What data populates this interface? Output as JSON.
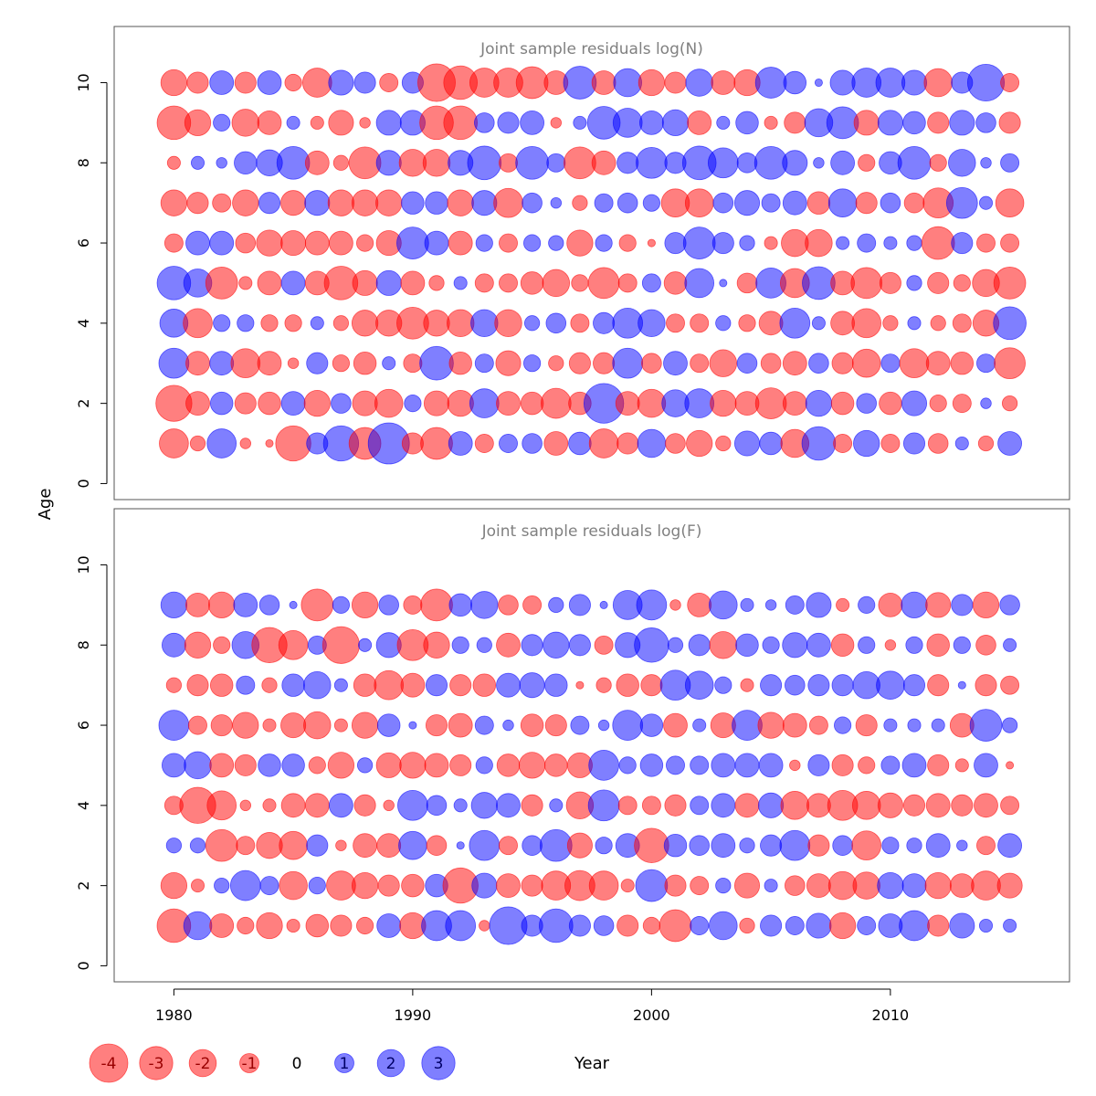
{
  "colors": {
    "negative": "#ff0000",
    "positive": "#0000ff",
    "bubble_opacity": 0.5,
    "panel_title": "#808080"
  },
  "labels": {
    "ylabel": "Age",
    "xlabel": "Year"
  },
  "chart_data": [
    {
      "type": "scatter",
      "title": "Joint sample residuals log(N)",
      "x_ticks": [
        1980,
        1990,
        2000,
        2010
      ],
      "y_ticks": [
        0,
        2,
        4,
        6,
        8,
        10
      ],
      "xlim": [
        1977.5,
        2017.5
      ],
      "ylim": [
        -0.4,
        11.4
      ],
      "years": [
        1980,
        1981,
        1982,
        1983,
        1984,
        1985,
        1986,
        1987,
        1988,
        1989,
        1990,
        1991,
        1992,
        1993,
        1994,
        1995,
        1996,
        1997,
        1998,
        1999,
        2000,
        2001,
        2002,
        2003,
        2004,
        2005,
        2006,
        2007,
        2008,
        2009,
        2010,
        2011,
        2012,
        2013,
        2014,
        2015
      ],
      "ages": [
        1,
        2,
        3,
        4,
        5,
        6,
        7,
        8,
        9,
        10
      ],
      "residuals": [
        [
          -1.5,
          -0.4,
          1.5,
          -0.2,
          -0.1,
          -2.2,
          0.8,
          2.2,
          -1.8,
          3.0,
          -0.8,
          -1.8,
          1.0,
          -0.6,
          0.6,
          0.7,
          -1.0,
          0.9,
          -1.5,
          -0.8,
          1.4,
          -0.7,
          -1.2,
          -0.4,
          1.1,
          0.9,
          -1.4,
          2.0,
          -0.6,
          1.2,
          -0.6,
          0.8,
          -0.7,
          0.3,
          -0.4,
          1.0
        ],
        [
          -2.3,
          -1.0,
          0.9,
          -0.8,
          -0.9,
          1.0,
          -1.2,
          0.7,
          -1.1,
          -1.4,
          0.5,
          -1.1,
          -1.2,
          1.5,
          -1.0,
          -0.9,
          -1.6,
          -0.9,
          2.8,
          -1.0,
          -1.4,
          1.3,
          1.5,
          -1.2,
          -1.0,
          -1.7,
          -1.0,
          1.2,
          -0.9,
          0.7,
          -0.9,
          1.1,
          -0.5,
          -0.6,
          0.2,
          -0.4
        ],
        [
          1.6,
          -1.0,
          1.0,
          -1.5,
          -1.0,
          -0.2,
          0.8,
          -0.5,
          -0.9,
          0.3,
          -0.6,
          2.0,
          -0.9,
          0.6,
          -1.1,
          0.5,
          -0.4,
          -0.8,
          -0.8,
          1.6,
          -0.7,
          1.0,
          -0.6,
          -1.3,
          0.7,
          -0.7,
          -1.0,
          0.7,
          -0.8,
          -1.4,
          0.6,
          -1.5,
          -1.0,
          -0.9,
          0.6,
          -1.7
        ],
        [
          1.4,
          -1.5,
          0.5,
          0.5,
          -0.5,
          -0.5,
          0.3,
          -0.4,
          -1.2,
          -1.2,
          -1.8,
          -1.2,
          -1.3,
          1.3,
          -1.3,
          0.4,
          0.7,
          -0.6,
          0.8,
          1.6,
          1.3,
          -0.6,
          -0.6,
          0.4,
          -0.5,
          -1.0,
          1.6,
          0.3,
          -1.0,
          -1.5,
          -0.4,
          0.3,
          -0.4,
          -0.6,
          -1.2,
          1.9
        ],
        [
          2.0,
          1.4,
          -1.8,
          -0.3,
          -1.0,
          1.0,
          -1.0,
          -2.0,
          -1.1,
          1.1,
          -1.0,
          -0.4,
          0.3,
          -0.6,
          -0.6,
          -0.9,
          -1.3,
          -0.5,
          -1.7,
          -0.6,
          0.6,
          -0.9,
          1.5,
          0.1,
          -0.7,
          1.6,
          -1.5,
          1.9,
          -1.0,
          -1.7,
          -0.8,
          0.4,
          -0.8,
          -0.5,
          -1.3,
          -1.8
        ],
        [
          -0.6,
          1.0,
          1.0,
          -0.7,
          -1.2,
          -1.1,
          -1.0,
          -1.0,
          -0.5,
          -1.1,
          1.8,
          1.0,
          -1.0,
          0.5,
          -0.6,
          0.5,
          0.4,
          -1.2,
          0.5,
          -0.5,
          -0.1,
          0.8,
          1.8,
          0.8,
          0.4,
          -0.3,
          -1.3,
          -1.3,
          0.3,
          0.6,
          0.3,
          0.4,
          -1.9,
          0.8,
          -0.6,
          -0.6
        ],
        [
          -1.2,
          -0.8,
          -0.6,
          -1.2,
          0.8,
          -1.1,
          1.1,
          -1.2,
          -1.2,
          -1.2,
          0.9,
          0.9,
          -1.2,
          1.1,
          -1.5,
          0.7,
          0.2,
          -0.4,
          0.6,
          0.7,
          0.5,
          -1.4,
          -1.4,
          0.7,
          1.1,
          0.6,
          1.0,
          -0.9,
          1.4,
          -0.8,
          0.7,
          -0.7,
          -1.6,
          1.7,
          0.3,
          -1.4
        ],
        [
          -0.3,
          0.3,
          0.2,
          0.9,
          1.2,
          1.9,
          -1.0,
          -0.4,
          -1.8,
          1.1,
          -1.3,
          -1.3,
          1.1,
          2.0,
          -0.6,
          1.9,
          0.6,
          -1.8,
          -1.0,
          0.8,
          1.7,
          0.8,
          2.0,
          1.6,
          0.7,
          1.9,
          1.1,
          0.2,
          1.0,
          -0.5,
          0.9,
          1.9,
          -0.5,
          1.3,
          0.2,
          0.6
        ],
        [
          -2.0,
          -1.2,
          0.5,
          -1.3,
          -1.0,
          0.3,
          -0.3,
          -1.1,
          -0.2,
          1.1,
          1.1,
          -2.0,
          -2.0,
          0.7,
          0.8,
          1.0,
          -0.2,
          0.3,
          1.9,
          1.5,
          1.0,
          1.2,
          -1.0,
          0.3,
          0.9,
          -0.3,
          -0.8,
          1.4,
          1.8,
          -1.1,
          1.1,
          0.9,
          -0.8,
          1.1,
          0.7,
          -0.8
        ],
        [
          -1.2,
          -0.8,
          1.0,
          -0.8,
          1.0,
          -0.5,
          -1.5,
          1.1,
          0.8,
          -0.6,
          0.8,
          -2.5,
          -2.0,
          -1.5,
          -1.5,
          -1.8,
          -1.0,
          1.9,
          -1.0,
          1.4,
          -1.2,
          -0.8,
          1.3,
          -1.0,
          -1.2,
          1.7,
          0.9,
          0.1,
          1.1,
          1.5,
          1.5,
          1.1,
          -1.4,
          0.8,
          2.4,
          -0.6
        ]
      ]
    },
    {
      "type": "scatter",
      "title": "Joint sample residuals log(F)",
      "x_ticks": [
        1980,
        1990,
        2000,
        2010
      ],
      "y_ticks": [
        0,
        2,
        4,
        6,
        8,
        10
      ],
      "xlim": [
        1977.5,
        2017.5
      ],
      "ylim": [
        -0.4,
        11.4
      ],
      "years": [
        1980,
        1981,
        1982,
        1983,
        1984,
        1985,
        1986,
        1987,
        1988,
        1989,
        1990,
        1991,
        1992,
        1993,
        1994,
        1995,
        1996,
        1997,
        1998,
        1999,
        2000,
        2001,
        2002,
        2003,
        2004,
        2005,
        2006,
        2007,
        2008,
        2009,
        2010,
        2011,
        2012,
        2013,
        2014,
        2015
      ],
      "ages": [
        1,
        2,
        3,
        4,
        5,
        6,
        7,
        8,
        9
      ],
      "residuals": [
        [
          -2.0,
          1.4,
          -1.0,
          -0.5,
          -1.2,
          -0.3,
          -0.9,
          -0.8,
          -0.5,
          1.0,
          -1.2,
          1.6,
          1.6,
          -0.2,
          2.5,
          0.8,
          2.0,
          0.8,
          0.7,
          -0.8,
          -0.5,
          -1.8,
          0.6,
          1.4,
          -0.4,
          0.8,
          0.6,
          1.1,
          -1.2,
          0.6,
          1.0,
          1.6,
          -0.8,
          1.1,
          0.3,
          0.3
        ],
        [
          -1.2,
          -0.3,
          0.4,
          1.6,
          0.6,
          -1.4,
          0.5,
          -1.5,
          -1.2,
          -0.8,
          -0.9,
          0.9,
          -2.2,
          1.1,
          -1.0,
          -0.8,
          -1.5,
          -1.6,
          -1.5,
          -0.3,
          1.8,
          -0.8,
          -0.6,
          0.4,
          -1.1,
          0.3,
          -0.7,
          -1.0,
          -1.4,
          -1.3,
          1.2,
          1.0,
          -1.2,
          -1.0,
          -1.5,
          -1.1
        ],
        [
          0.4,
          0.4,
          -1.8,
          -0.6,
          -1.2,
          -1.4,
          0.8,
          -0.2,
          -1.0,
          -1.0,
          1.4,
          -0.7,
          0.1,
          1.6,
          -0.6,
          0.7,
          1.8,
          -1.1,
          0.5,
          1.0,
          -2.1,
          0.9,
          0.7,
          1.0,
          0.4,
          0.8,
          1.6,
          -0.8,
          0.7,
          -1.5,
          0.5,
          0.4,
          1.0,
          0.2,
          -0.6,
          1.0
        ],
        [
          -0.6,
          -2.3,
          -1.5,
          -0.2,
          -0.3,
          -1.0,
          -1.0,
          1.0,
          -0.8,
          -0.2,
          1.6,
          0.7,
          0.3,
          1.2,
          1.0,
          -0.8,
          0.3,
          -1.3,
          1.7,
          -0.6,
          -0.6,
          -0.8,
          0.6,
          1.0,
          -1.0,
          1.1,
          -1.4,
          -1.0,
          -1.6,
          -1.4,
          -1.1,
          -0.8,
          -1.0,
          -0.8,
          -1.0,
          -0.6
        ],
        [
          1.0,
          1.3,
          -1.0,
          -0.8,
          0.9,
          0.9,
          -0.5,
          -1.2,
          0.4,
          -1.1,
          -1.2,
          -1.0,
          -0.8,
          0.5,
          -0.9,
          -1.2,
          -0.9,
          -1.1,
          1.6,
          0.5,
          0.9,
          0.6,
          0.6,
          1.0,
          1.0,
          1.0,
          -0.2,
          0.8,
          -0.8,
          -0.5,
          0.6,
          1.0,
          -0.8,
          -0.3,
          1.0,
          -0.1
        ],
        [
          1.6,
          -0.6,
          -0.8,
          -1.2,
          -0.3,
          -1.1,
          -1.3,
          -0.3,
          -1.2,
          0.9,
          0.1,
          -0.8,
          -1.0,
          0.6,
          0.2,
          -0.9,
          -0.8,
          0.6,
          0.2,
          1.6,
          0.9,
          -1.0,
          0.3,
          -1.1,
          1.6,
          -1.2,
          -1.0,
          -0.6,
          0.5,
          -0.8,
          0.3,
          0.3,
          0.3,
          -1.0,
          1.8,
          0.4
        ],
        [
          -0.4,
          -0.8,
          -0.9,
          0.6,
          -0.4,
          0.9,
          1.3,
          0.3,
          -0.9,
          -1.5,
          -1.0,
          0.8,
          -0.8,
          -0.9,
          1.0,
          1.1,
          0.9,
          -0.1,
          -0.4,
          -0.9,
          -0.8,
          1.6,
          1.4,
          0.5,
          -0.3,
          0.8,
          0.7,
          0.8,
          0.8,
          1.3,
          1.4,
          0.8,
          -0.8,
          0.1,
          -0.8,
          -0.6
        ],
        [
          1.0,
          -1.2,
          -0.5,
          1.3,
          -2.2,
          -1.5,
          0.6,
          -2.4,
          0.3,
          1.1,
          -1.7,
          -1.2,
          0.5,
          0.4,
          -1.0,
          0.8,
          1.2,
          0.8,
          -0.6,
          1.1,
          2.1,
          0.4,
          0.8,
          -1.3,
          0.9,
          0.5,
          1.1,
          1.0,
          -0.9,
          0.5,
          -0.2,
          0.5,
          -0.9,
          0.5,
          -0.7,
          0.3
        ],
        [
          1.2,
          -1.0,
          -1.2,
          1.0,
          0.7,
          0.1,
          -1.8,
          0.5,
          -1.2,
          0.7,
          -0.6,
          -1.8,
          0.9,
          1.3,
          -0.7,
          -0.6,
          0.4,
          0.8,
          0.1,
          1.5,
          1.6,
          -0.2,
          -1.0,
          1.4,
          0.3,
          0.2,
          0.6,
          1.1,
          -0.3,
          0.5,
          -1.0,
          1.2,
          -1.1,
          0.8,
          -1.2,
          0.7
        ]
      ]
    }
  ],
  "legend": {
    "values": [
      -4,
      -3,
      -2,
      -1,
      0,
      1,
      2,
      3
    ],
    "labels": [
      "-4",
      "-3",
      "-2",
      "-1",
      "0",
      "1",
      "2",
      "3"
    ]
  }
}
